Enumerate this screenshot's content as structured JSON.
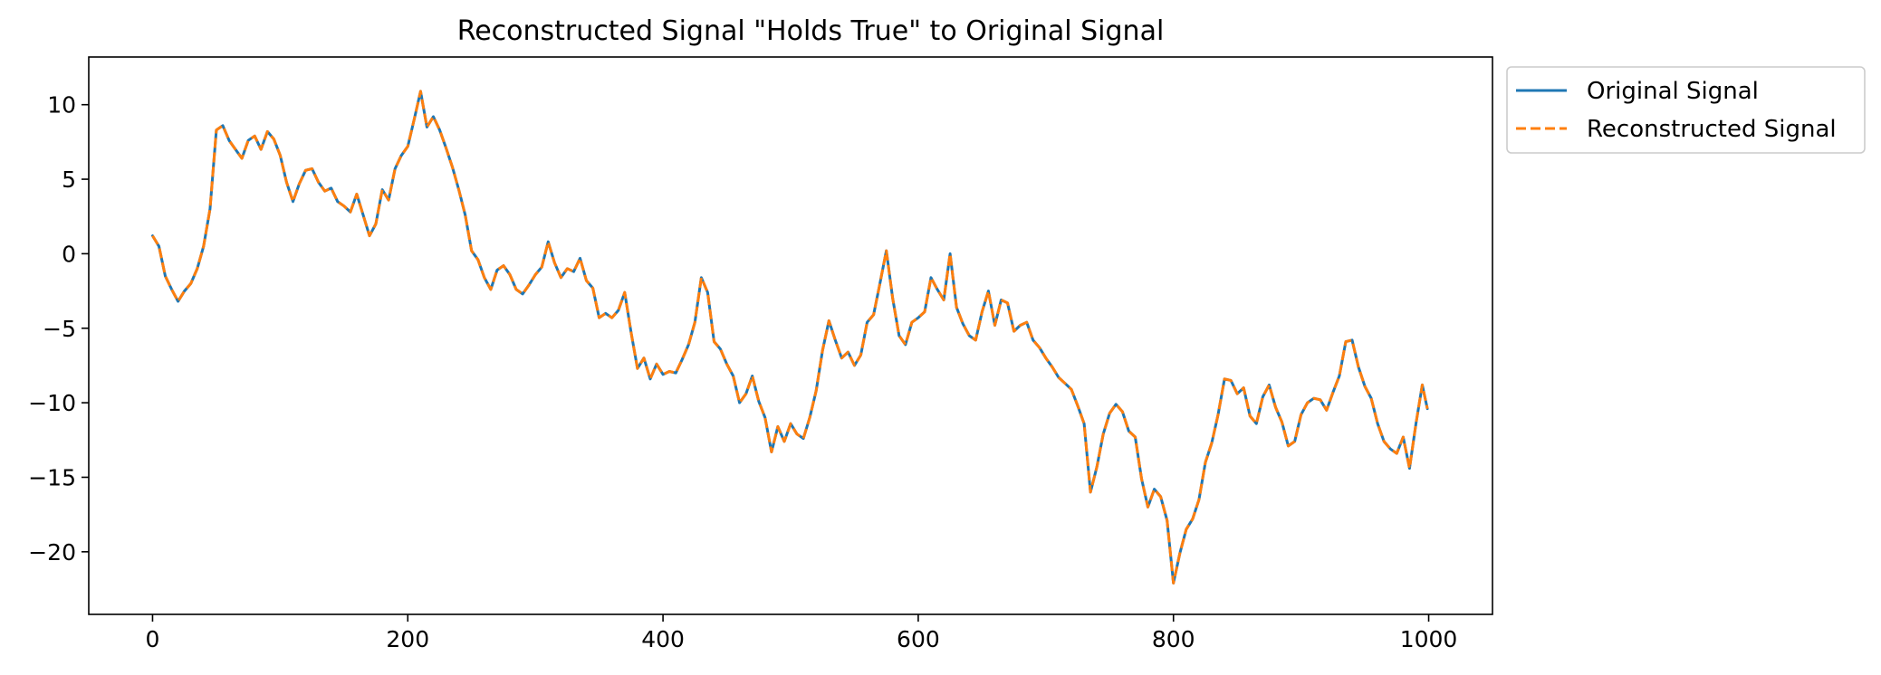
{
  "chart_data": {
    "type": "line",
    "title": "Reconstructed Signal \"Holds True\" to Original Signal",
    "xlabel": "",
    "ylabel": "",
    "xlim": [
      -50,
      1050
    ],
    "ylim": [
      -24.2,
      13.2
    ],
    "x_ticks": [
      0,
      200,
      400,
      600,
      800,
      1000
    ],
    "y_ticks": [
      10,
      5,
      0,
      -5,
      -10,
      -15,
      -20
    ],
    "y_tick_labels": [
      "10",
      "5",
      "0",
      "−5",
      "−10",
      "−15",
      "−20"
    ],
    "grid": false,
    "legend_position": "outside-top-right",
    "legend": [
      "Original Signal",
      "Reconstructed Signal"
    ],
    "series": [
      {
        "name": "Original Signal",
        "color": "#1f77b4",
        "style": "solid"
      },
      {
        "name": "Reconstructed Signal",
        "color": "#ff7f0e",
        "style": "dashed"
      }
    ],
    "x": [
      0,
      5,
      10,
      15,
      20,
      25,
      30,
      35,
      40,
      45,
      50,
      55,
      60,
      65,
      70,
      75,
      80,
      85,
      90,
      95,
      100,
      105,
      110,
      115,
      120,
      125,
      130,
      135,
      140,
      145,
      150,
      155,
      160,
      165,
      170,
      175,
      180,
      185,
      190,
      195,
      200,
      205,
      210,
      215,
      220,
      225,
      230,
      235,
      240,
      245,
      250,
      255,
      260,
      265,
      270,
      275,
      280,
      285,
      290,
      295,
      300,
      305,
      310,
      315,
      320,
      325,
      330,
      335,
      340,
      345,
      350,
      355,
      360,
      365,
      370,
      375,
      380,
      385,
      390,
      395,
      400,
      405,
      410,
      415,
      420,
      425,
      430,
      435,
      440,
      445,
      450,
      455,
      460,
      465,
      470,
      475,
      480,
      485,
      490,
      495,
      500,
      505,
      510,
      515,
      520,
      525,
      530,
      535,
      540,
      545,
      550,
      555,
      560,
      565,
      570,
      575,
      580,
      585,
      590,
      595,
      600,
      605,
      610,
      615,
      620,
      625,
      630,
      635,
      640,
      645,
      650,
      655,
      660,
      665,
      670,
      675,
      680,
      685,
      690,
      695,
      700,
      705,
      710,
      715,
      720,
      725,
      730,
      735,
      740,
      745,
      750,
      755,
      760,
      765,
      770,
      775,
      780,
      785,
      790,
      795,
      800,
      805,
      810,
      815,
      820,
      825,
      830,
      835,
      840,
      845,
      850,
      855,
      860,
      865,
      870,
      875,
      880,
      885,
      890,
      895,
      900,
      905,
      910,
      915,
      920,
      925,
      930,
      935,
      940,
      945,
      950,
      955,
      960,
      965,
      970,
      975,
      980,
      985,
      990,
      995,
      999
    ],
    "values": [
      1.2,
      0.5,
      -1.5,
      -2.4,
      -3.2,
      -2.5,
      -2.0,
      -1.0,
      0.5,
      3.0,
      8.3,
      8.6,
      7.6,
      7.0,
      6.4,
      7.6,
      7.9,
      7.0,
      8.2,
      7.7,
      6.6,
      4.8,
      3.5,
      4.7,
      5.6,
      5.7,
      4.8,
      4.2,
      4.4,
      3.5,
      3.2,
      2.8,
      4.0,
      2.6,
      1.2,
      2.0,
      4.3,
      3.6,
      5.7,
      6.6,
      7.2,
      9.0,
      10.9,
      8.5,
      9.2,
      8.3,
      7.1,
      5.8,
      4.3,
      2.6,
      0.2,
      -0.4,
      -1.6,
      -2.4,
      -1.1,
      -0.8,
      -1.4,
      -2.4,
      -2.7,
      -2.1,
      -1.4,
      -0.9,
      0.8,
      -0.6,
      -1.6,
      -1.0,
      -1.2,
      -0.3,
      -1.8,
      -2.3,
      -4.3,
      -4.0,
      -4.3,
      -3.8,
      -2.6,
      -5.3,
      -7.7,
      -7.0,
      -8.4,
      -7.4,
      -8.1,
      -7.9,
      -8.0,
      -7.1,
      -6.1,
      -4.6,
      -1.6,
      -2.6,
      -5.9,
      -6.4,
      -7.4,
      -8.2,
      -10.0,
      -9.4,
      -8.2,
      -9.9,
      -11.0,
      -13.3,
      -11.6,
      -12.6,
      -11.4,
      -12.1,
      -12.4,
      -11.0,
      -9.2,
      -6.5,
      -4.5,
      -5.8,
      -7.0,
      -6.6,
      -7.5,
      -6.8,
      -4.6,
      -4.1,
      -2.0,
      0.2,
      -3.0,
      -5.5,
      -6.1,
      -4.6,
      -4.3,
      -3.9,
      -1.6,
      -2.4,
      -3.1,
      0.0,
      -3.6,
      -4.7,
      -5.5,
      -5.8,
      -3.9,
      -2.5,
      -4.8,
      -3.1,
      -3.3,
      -5.2,
      -4.8,
      -4.6,
      -5.8,
      -6.3,
      -7.0,
      -7.6,
      -8.3,
      -8.7,
      -9.1,
      -10.2,
      -11.4,
      -16.0,
      -14.3,
      -12.1,
      -10.7,
      -10.1,
      -10.6,
      -11.9,
      -12.3,
      -15.1,
      -17.0,
      -15.8,
      -16.3,
      -17.9,
      -22.1,
      -20.1,
      -18.5,
      -17.8,
      -16.5,
      -14.0,
      -12.7,
      -10.8,
      -8.4,
      -8.5,
      -9.4,
      -9.0,
      -10.9,
      -11.4,
      -9.6,
      -8.8,
      -10.3,
      -11.3,
      -12.9,
      -12.6,
      -10.8,
      -10.0,
      -9.7,
      -9.8,
      -10.5,
      -9.3,
      -8.2,
      -5.9,
      -5.8,
      -7.6,
      -8.9,
      -9.7,
      -11.4,
      -12.6,
      -13.1,
      -13.4,
      -12.3,
      -14.4,
      -11.4,
      -8.8,
      -10.4
    ]
  }
}
